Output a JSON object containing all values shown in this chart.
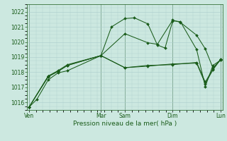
{
  "background_color": "#cce8e0",
  "grid_color": "#aacccc",
  "line_color": "#1a5c1a",
  "marker_color": "#1a5c1a",
  "xlabel": "Pression niveau de la mer( hPa )",
  "ylim": [
    1015.5,
    1022.5
  ],
  "yticks": [
    1016,
    1017,
    1018,
    1019,
    1020,
    1021,
    1022
  ],
  "day_labels": [
    "Ven",
    "",
    "",
    "Mar",
    "Sam",
    "",
    "",
    "Dim",
    "",
    "Lun"
  ],
  "day_positions": [
    0.0,
    0.375,
    0.5,
    0.75,
    1.0
  ],
  "day_tick_labels": [
    "Ven",
    "Mar",
    "Sam",
    "Dim",
    "Lun"
  ],
  "series": [
    {
      "x": [
        0.0,
        0.04,
        0.1,
        0.15,
        0.2,
        0.375,
        0.43,
        0.5,
        0.55,
        0.62,
        0.67,
        0.71,
        0.75,
        0.79,
        0.875,
        0.92,
        0.96,
        1.0
      ],
      "y": [
        1015.7,
        1016.2,
        1017.5,
        1017.95,
        1018.1,
        1019.1,
        1021.0,
        1021.55,
        1021.6,
        1021.2,
        1019.8,
        1019.6,
        1021.4,
        1021.35,
        1019.5,
        1017.05,
        1018.45,
        1018.8
      ]
    },
    {
      "x": [
        0.0,
        0.1,
        0.15,
        0.2,
        0.375,
        0.5,
        0.62,
        0.67,
        0.75,
        0.79,
        0.875,
        0.92,
        0.96,
        1.0
      ],
      "y": [
        1015.7,
        1017.7,
        1018.05,
        1018.45,
        1019.1,
        1020.55,
        1019.95,
        1019.85,
        1021.45,
        1021.3,
        1020.45,
        1019.55,
        1018.3,
        1018.8
      ]
    },
    {
      "x": [
        0.0,
        0.1,
        0.15,
        0.2,
        0.375,
        0.5,
        0.62,
        0.75,
        0.875,
        0.92,
        0.96,
        1.0
      ],
      "y": [
        1015.7,
        1017.75,
        1018.1,
        1018.5,
        1019.1,
        1018.3,
        1018.45,
        1018.5,
        1018.65,
        1017.35,
        1018.2,
        1018.85
      ]
    },
    {
      "x": [
        0.0,
        0.1,
        0.15,
        0.2,
        0.375,
        0.5,
        0.62,
        0.75,
        0.875,
        0.92,
        0.96,
        1.0
      ],
      "y": [
        1015.7,
        1017.75,
        1018.05,
        1018.45,
        1019.1,
        1018.3,
        1018.4,
        1018.55,
        1018.6,
        1017.25,
        1018.15,
        1018.85
      ]
    }
  ]
}
